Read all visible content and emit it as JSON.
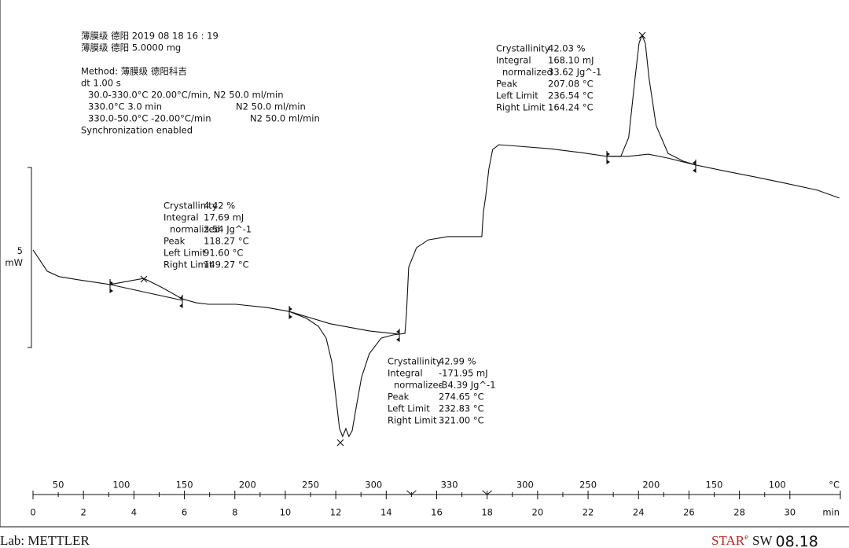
{
  "chart_data": {
    "type": "line",
    "header": [
      "薄膜级 德阳 2019 08 18 16 : 19",
      "薄膜级 德阳  5.0000 mg"
    ],
    "method_lines": [
      "Method: 薄膜级 德阳科吉",
      "dt 1.00 s"
    ],
    "program": [
      [
        "30.0-330.0°C 20.00°C/min, N2 50.0 ml/min"
      ],
      [
        "330.0°C 3.0 min",
        "N2 50.0 ml/min"
      ],
      [
        "330.0-50.0°C -20.00°C/min",
        "N2 50.0 ml/min"
      ]
    ],
    "sync": "Synchronization enabled",
    "x": [
      0,
      0.25,
      0.56,
      1.03,
      1.81,
      3.05,
      3.68,
      4.39,
      5.08,
      5.92,
      6.48,
      6.95,
      8.04,
      9.28,
      10.16,
      10.84,
      11.31,
      11.62,
      11.84,
      12.02,
      12.15,
      12.27,
      12.4,
      12.52,
      12.65,
      12.8,
      13.02,
      13.33,
      13.8,
      14.27,
      14.74,
      14.8,
      14.89,
      15.2,
      15.67,
      16.45,
      17.79,
      17.85,
      17.94,
      18.07,
      18.22,
      18.47,
      19.25,
      20.5,
      21.74,
      22.74,
      23.3,
      23.61,
      23.86,
      24.02,
      24.14,
      24.27,
      24.42,
      24.7,
      25.17,
      25.79,
      26.26,
      27.35,
      28.6,
      29.84,
      31.09,
      31.96
    ],
    "values": [
      2.71,
      2.45,
      2.12,
      1.97,
      1.88,
      1.75,
      1.83,
      1.92,
      1.68,
      1.35,
      1.24,
      1.2,
      1.2,
      1.11,
      1.0,
      0.81,
      0.59,
      0.26,
      -0.39,
      -1.48,
      -2.25,
      -2.47,
      -2.25,
      -2.47,
      -2.31,
      -1.7,
      -0.83,
      -0.17,
      0.26,
      0.35,
      0.39,
      0.92,
      2.23,
      2.77,
      2.99,
      3.08,
      3.08,
      3.76,
      4.19,
      4.96,
      5.5,
      5.63,
      5.59,
      5.52,
      5.41,
      5.31,
      5.31,
      5.83,
      7.47,
      8.45,
      8.67,
      8.45,
      7.47,
      6.16,
      5.39,
      5.17,
      5.07,
      4.91,
      4.74,
      4.56,
      4.37,
      4.15
    ],
    "baselines": [
      {
        "x": [
          3.05,
          5.92
        ],
        "values": [
          1.75,
          1.31
        ]
      },
      {
        "x": [
          10.16,
          11.78,
          13.33,
          14.52
        ],
        "values": [
          1.0,
          0.66,
          0.46,
          0.37
        ]
      },
      {
        "x": [
          22.74,
          23.61,
          24.39,
          25.17,
          26.26
        ],
        "values": [
          5.31,
          5.31,
          5.37,
          5.26,
          5.07
        ]
      }
    ],
    "results": [
      {
        "labels": [
          "Crystallinity",
          "Integral",
          "normalized",
          "Peak",
          "Left Limit",
          "Right Limit"
        ],
        "values": [
          "4.42 %",
          "17.69 mJ",
          "3.54 Jg^-1",
          "118.27 °C",
          "91.60 °C",
          "149.27 °C"
        ]
      },
      {
        "labels": [
          "Crystallinity",
          "Integral",
          "normalized",
          "Peak",
          "Left Limit",
          "Right Limit"
        ],
        "values": [
          "42.99 %",
          "-171.95 mJ",
          "-34.39 Jg^-1",
          "274.65 °C",
          "232.83 °C",
          "321.00 °C"
        ]
      },
      {
        "labels": [
          "Crystallinity",
          "Integral",
          "normalized",
          "Peak",
          "Left Limit",
          "Right Limit"
        ],
        "values": [
          "42.03 %",
          "168.10 mJ",
          "33.62 Jg^-1",
          "207.08 °C",
          "236.54 °C",
          "164.24 °C"
        ]
      }
    ],
    "xlim": [
      0,
      32
    ],
    "xticks": [
      0,
      2,
      4,
      6,
      8,
      10,
      12,
      14,
      16,
      18,
      20,
      22,
      24,
      26,
      28,
      30
    ],
    "xlabel": "min",
    "ylim": [
      -4,
      10
    ],
    "temperature_labels": [
      {
        "time": 1,
        "label": "50"
      },
      {
        "time": 3.5,
        "label": "100"
      },
      {
        "time": 6,
        "label": "150"
      },
      {
        "time": 8.5,
        "label": "200"
      },
      {
        "time": 11,
        "label": "250"
      },
      {
        "time": 13.5,
        "label": "300"
      },
      {
        "time": 16.5,
        "label": "330"
      },
      {
        "time": 19.5,
        "label": "300"
      },
      {
        "time": 22,
        "label": "250"
      },
      {
        "time": 24.5,
        "label": "200"
      },
      {
        "time": 27,
        "label": "150"
      },
      {
        "time": 29.5,
        "label": "100"
      }
    ],
    "temperature_unit": "°C",
    "segment_marks": [
      15,
      18
    ],
    "scale_bar": {
      "value": 5,
      "labels": [
        "5",
        "mW"
      ]
    },
    "footer_left": "Lab: METTLER",
    "footer_right": [
      "STAR",
      "e",
      "SW",
      "08.18"
    ]
  }
}
